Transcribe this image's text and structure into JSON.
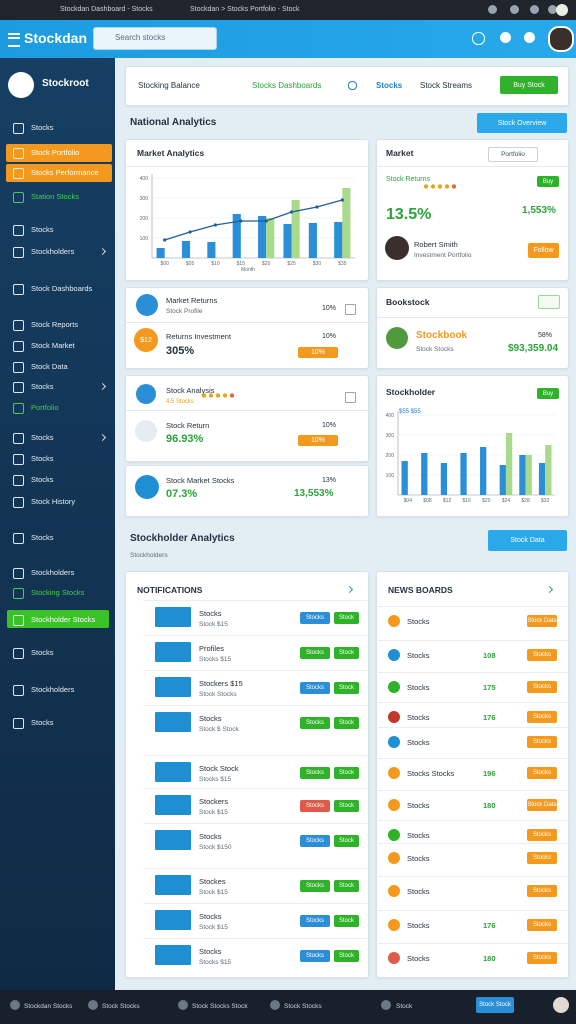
{
  "browser": {
    "tab": "Stockdan Dashboard - Stocks",
    "tab2": "Stockdan > Stocks Portfolio - Stock"
  },
  "header": {
    "logo": "Stockdan",
    "search": "Search stocks"
  },
  "sidebar": {
    "brand": "Stockroot",
    "items": [
      "Stocks",
      "Stock Portfolio",
      "Stocks Performance",
      "Station Stocks",
      "Stocks",
      "Stockholders",
      "Stock Dashboards",
      "Stock Reports",
      "Stock Market",
      "Stock Data",
      "Stocks",
      "Portfolio",
      "Stocks",
      "Stocks",
      "Stocks",
      "Stock History",
      "Stocks",
      "Stockholders",
      "Stocking Stocks",
      "Stockholder Stocks",
      "Stocks",
      "Stockholders",
      "Stocks"
    ]
  },
  "top_card": {
    "label": "Stocking Balance",
    "link": "Stocks Dashboards",
    "link2": "Stocks",
    "link3": "Stock Streams",
    "button": "Buy Stock"
  },
  "analytics": {
    "title": "National Analytics",
    "button": "Stock Overview"
  },
  "market_chart": {
    "title": "Market Analytics",
    "x_label": "Month",
    "categories": [
      "$00",
      "$05",
      "$10",
      "$15",
      "$20",
      "$25",
      "$30",
      "$35"
    ],
    "ylim": [
      0,
      400
    ],
    "yticks": [
      100,
      200,
      300,
      400
    ],
    "series": [
      {
        "color": "#2a8fd6",
        "values": [
          50,
          85,
          80,
          220,
          210,
          170,
          175,
          180
        ]
      },
      {
        "color": "#a9d98a",
        "values": [
          null,
          null,
          null,
          null,
          200,
          290,
          null,
          350
        ]
      }
    ],
    "line": {
      "color": "#1f5f95",
      "values": [
        90,
        130,
        165,
        185,
        185,
        230,
        255,
        290
      ]
    }
  },
  "market": {
    "title": "Market",
    "button": "Portfolio",
    "label": "Stock Returns",
    "badge": "Buy",
    "change": "13.5%",
    "total": "1,553%",
    "person": "Robert Smith",
    "role": "Investment Portfolio",
    "follow": "Follow"
  },
  "returns": {
    "title": "Market Returns",
    "sub": "Stock Profile",
    "pct": "10%",
    "icon": "$12",
    "label": "Returns Investment",
    "value": "305%",
    "pct2": "10%",
    "badge": "10%"
  },
  "bookstock": {
    "title": "Bookstock",
    "name": "Stockbook",
    "sub": "Stock Stocks",
    "pct": "58%",
    "value": "$93,359.04"
  },
  "analysis": {
    "title": "Stock Analysis",
    "stars_label": "4.5 Stocks",
    "pct": "10%",
    "label": "Stock Return",
    "value": "96.93%",
    "badge": "10%"
  },
  "market_stocks": {
    "label": "Stock Market Stocks",
    "pct": "13%",
    "value": "07.3%",
    "total": "13,553%"
  },
  "holder_chart": {
    "title": "Stockholder",
    "badge": "Buy",
    "legend": "$55 $55",
    "categories": [
      "$04",
      "$08",
      "$12",
      "$16",
      "$20",
      "$24",
      "$28",
      "$32"
    ],
    "ylim": [
      0,
      400
    ],
    "yticks": [
      100,
      200,
      300,
      400
    ],
    "series": [
      {
        "color": "#2a8fd6",
        "values": [
          170,
          210,
          160,
          210,
          240,
          150,
          200,
          160
        ]
      },
      {
        "color": "#a9d98a",
        "values": [
          null,
          null,
          null,
          null,
          null,
          310,
          200,
          250
        ]
      }
    ]
  },
  "holder": {
    "title": "Stockholder Analytics",
    "sub": "Stockholders",
    "button": "Stock Data"
  },
  "notifications": {
    "title": "NOTIFICATIONS",
    "rows": [
      {
        "name": "Stocks",
        "sub": "Stock $15",
        "b1": "Stocks",
        "b2": "Stock"
      },
      {
        "name": "Profiles",
        "sub": "Stocks $15",
        "b1": "Stocks",
        "b2": "Stock"
      },
      {
        "name": "Stockers $15",
        "sub": "Stock Stocks",
        "b1": "Stocks",
        "b2": "Stock"
      },
      {
        "name": "Stocks",
        "sub": "Stock $ Stock",
        "b1": "Stocks",
        "b2": "Stock"
      },
      {
        "name": "Stock Stock",
        "sub": "Stocks $15",
        "b1": "Stocks",
        "b2": "Stock"
      },
      {
        "name": "Stockers",
        "sub": "Stock $15",
        "b1": "Stocks",
        "b2": "Stock"
      },
      {
        "name": "Stocks",
        "sub": "Stock $150",
        "b1": "Stocks",
        "b2": "Stock"
      },
      {
        "name": "Stockes",
        "sub": "Stock $15",
        "b1": "Stocks",
        "b2": "Stock"
      },
      {
        "name": "Stocks",
        "sub": "Stock $15",
        "b1": "Stocks",
        "b2": "Stock"
      },
      {
        "name": "Stocks",
        "sub": "Stocks $15",
        "b1": "Stocks",
        "b2": "Stock"
      }
    ]
  },
  "news": {
    "title": "NEWS BOARDS",
    "rows": [
      {
        "name": "Stocks",
        "button": "Stock Data"
      },
      {
        "name": "Stocks",
        "value": "108",
        "button": "Stocks"
      },
      {
        "name": "Stocks",
        "value": "175",
        "button": "Stocks"
      },
      {
        "name": "Stocks",
        "value": "176",
        "button": "Stocks"
      },
      {
        "name": "Stocks",
        "button": "Stocks"
      },
      {
        "name": "Stocks Stocks",
        "value": "196",
        "button": "Stocks"
      },
      {
        "name": "Stocks",
        "value": "180",
        "button": "Stock Data"
      },
      {
        "name": "Stocks",
        "button": "Stocks"
      },
      {
        "name": "Stocks",
        "button": "Stocks"
      },
      {
        "name": "Stocks",
        "button": "Stocks"
      },
      {
        "name": "Stocks",
        "value": "176",
        "button": "Stocks"
      },
      {
        "name": "Stocks",
        "value": "180",
        "button": "Stocks"
      }
    ]
  },
  "footer": {
    "items": [
      "Stockdan Stocks",
      "Stock Stocks",
      "Stock Stocks Stock",
      "Stock Stocks"
    ],
    "right": "Stock",
    "button": "Stock Stock"
  }
}
